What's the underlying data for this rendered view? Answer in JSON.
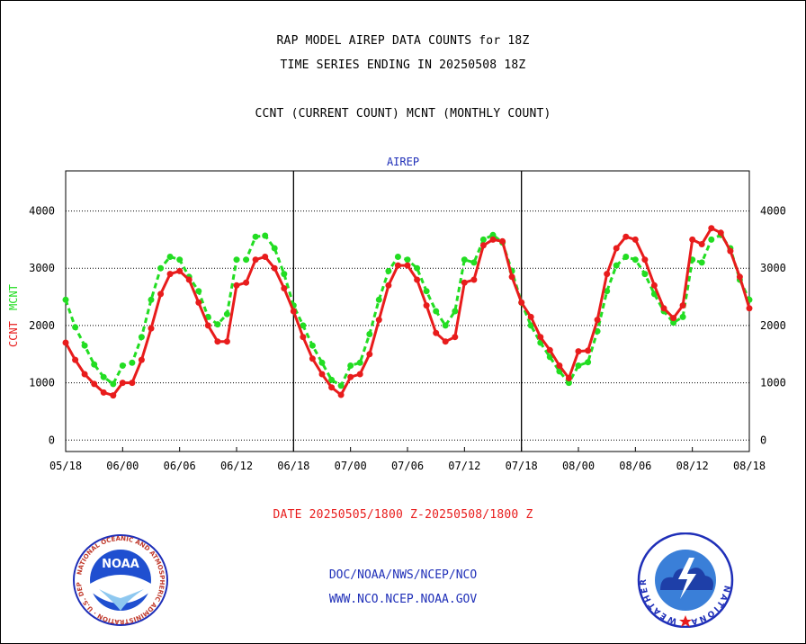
{
  "header": {
    "title_line1": "RAP MODEL AIREP DATA COUNTS for 18Z",
    "title_line2": "TIME SERIES ENDING IN 20250508 18Z",
    "legend_text": "CCNT (CURRENT COUNT) MCNT (MONTHLY COUNT)"
  },
  "footer": {
    "date_range": "DATE 20250505/1800 Z-20250508/1800 Z",
    "org_path": "DOC/NOAA/NWS/NCEP/NCO",
    "website": "WWW.NCO.NCEP.NOAA.GOV"
  },
  "logos": {
    "noaa_text": "NOAA",
    "noaa_ring": "NATIONAL OCEANIC AND ATMOSPHERIC ADMINISTRATION · U.S. DEPARTMENT OF COMMERCE",
    "nws_ring": "NATIONAL WEATHER SERVICE"
  },
  "colors": {
    "ccnt": "#e81c1c",
    "mcnt": "#22dd22",
    "axis_title": "#1f2fb8",
    "date_text": "#e81c1c"
  },
  "chart_data": {
    "type": "line",
    "title": "AIREP",
    "ylabel_left_1": "CCNT",
    "ylabel_left_2": "MCNT",
    "ylim": [
      -200,
      4700
    ],
    "yticks": [
      0,
      1000,
      2000,
      3000,
      4000
    ],
    "ytick_labels": [
      "0",
      "1000",
      "2000",
      "3000",
      "4000"
    ],
    "xlim": [
      0,
      72
    ],
    "xticks": [
      0,
      6,
      12,
      18,
      24,
      30,
      36,
      42,
      48,
      54,
      60,
      66,
      72
    ],
    "xtick_labels": [
      "05/18",
      "06/00",
      "06/06",
      "06/12",
      "06/18",
      "07/00",
      "07/06",
      "07/12",
      "07/18",
      "08/00",
      "08/06",
      "08/12",
      "08/18"
    ],
    "day_dividers": [
      24,
      48
    ],
    "grid": "horizontal-dotted",
    "series": [
      {
        "name": "CCNT",
        "style": "solid",
        "x": [
          0,
          1,
          2,
          3,
          4,
          5,
          6,
          7,
          8,
          9,
          10,
          11,
          12,
          13,
          14,
          15,
          16,
          17,
          18,
          19,
          20,
          21,
          22,
          23,
          24,
          25,
          26,
          27,
          28,
          29,
          30,
          31,
          32,
          33,
          34,
          35,
          36,
          37,
          38,
          39,
          40,
          41,
          42,
          43,
          44,
          45,
          46,
          47,
          48,
          49,
          50,
          51,
          52,
          53,
          54,
          55,
          56,
          57,
          58,
          59,
          60,
          61,
          62,
          63,
          64,
          65,
          66,
          67,
          68,
          69,
          70,
          71,
          72
        ],
        "values": [
          1700,
          1400,
          1150,
          980,
          830,
          780,
          1000,
          1000,
          1400,
          1950,
          2550,
          2900,
          2950,
          2800,
          2400,
          2000,
          1720,
          1720,
          2700,
          2750,
          3150,
          3200,
          3000,
          2650,
          2250,
          1800,
          1420,
          1150,
          920,
          790,
          1100,
          1150,
          1500,
          2100,
          2700,
          3050,
          3050,
          2800,
          2350,
          1870,
          1720,
          1800,
          2750,
          2800,
          3400,
          3500,
          3470,
          2850,
          2400,
          2150,
          1800,
          1570,
          1300,
          1080,
          1550,
          1560,
          2100,
          2900,
          3350,
          3550,
          3500,
          3150,
          2700,
          2300,
          2130,
          2350,
          3500,
          3420,
          3700,
          3620,
          3300,
          2850,
          2300
        ]
      },
      {
        "name": "MCNT",
        "style": "dashed",
        "x": [
          0,
          1,
          2,
          3,
          4,
          5,
          6,
          7,
          8,
          9,
          10,
          11,
          12,
          13,
          14,
          15,
          16,
          17,
          18,
          19,
          20,
          21,
          22,
          23,
          24,
          25,
          26,
          27,
          28,
          29,
          30,
          31,
          32,
          33,
          34,
          35,
          36,
          37,
          38,
          39,
          40,
          41,
          42,
          43,
          44,
          45,
          46,
          47,
          48,
          49,
          50,
          51,
          52,
          53,
          54,
          55,
          56,
          57,
          58,
          59,
          60,
          61,
          62,
          63,
          64,
          65,
          66,
          67,
          68,
          69,
          70,
          71,
          72
        ],
        "values": [
          2450,
          1970,
          1650,
          1320,
          1100,
          980,
          1300,
          1350,
          1800,
          2450,
          3000,
          3200,
          3150,
          2850,
          2600,
          2150,
          2020,
          2200,
          3150,
          3150,
          3550,
          3570,
          3350,
          2900,
          2350,
          2000,
          1650,
          1350,
          1050,
          950,
          1300,
          1350,
          1850,
          2450,
          2950,
          3200,
          3150,
          3000,
          2600,
          2250,
          2000,
          2250,
          3150,
          3100,
          3500,
          3580,
          3450,
          2950,
          2400,
          2000,
          1700,
          1450,
          1200,
          1000,
          1300,
          1360,
          1900,
          2600,
          3050,
          3200,
          3150,
          2900,
          2550,
          2250,
          2050,
          2150,
          3150,
          3100,
          3500,
          3580,
          3350,
          2800,
          2450
        ]
      }
    ]
  }
}
